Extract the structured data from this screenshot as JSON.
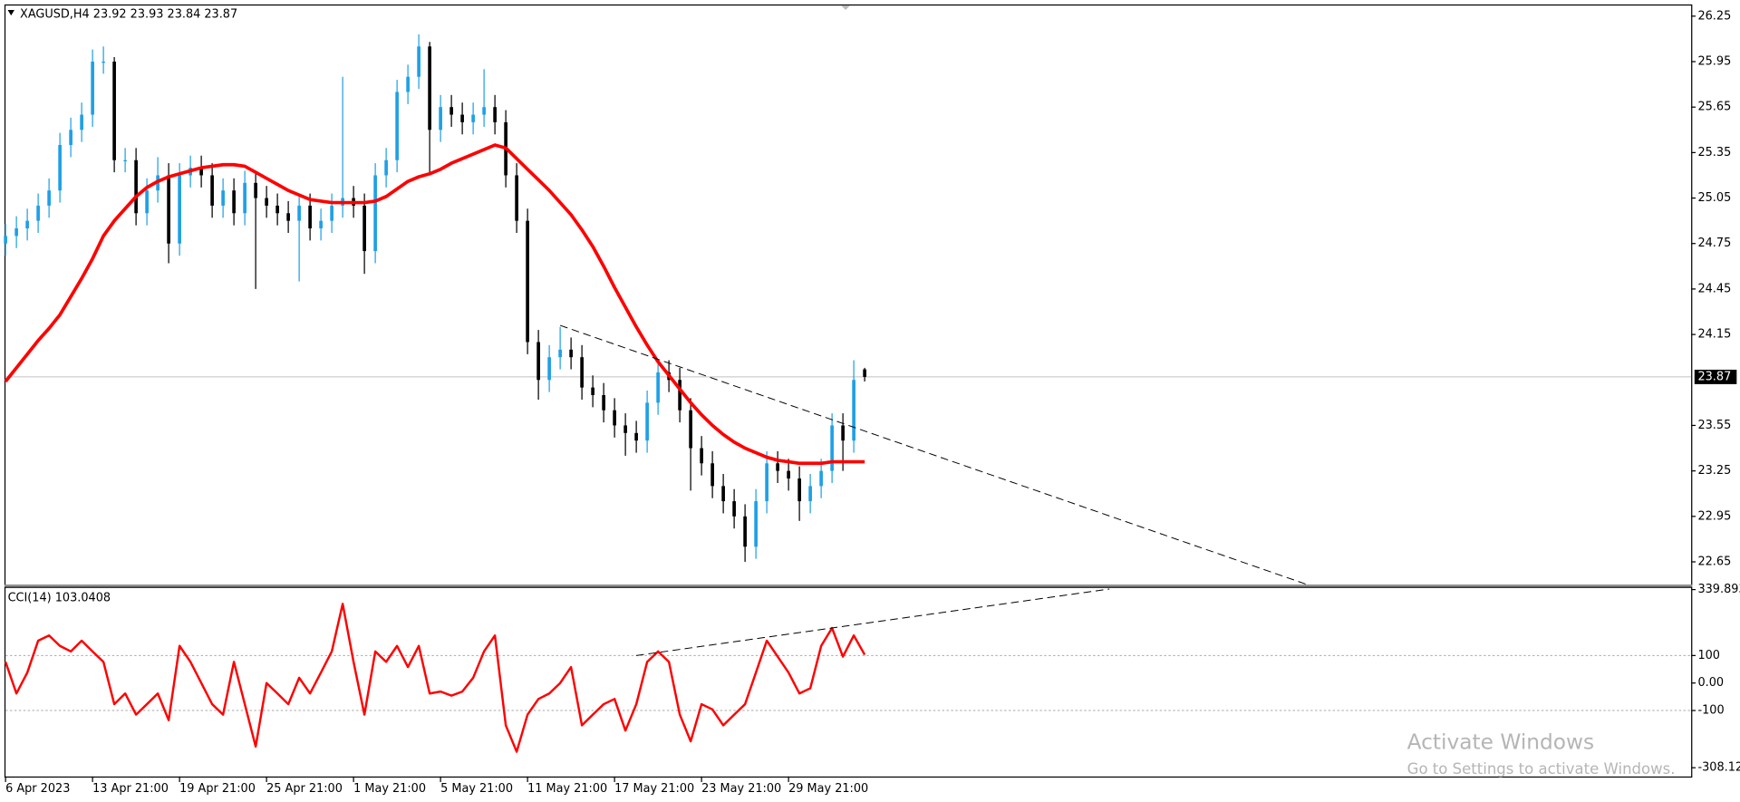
{
  "chart_data": [
    {
      "type": "candlestick",
      "title": "XAGUSD,H4  23.92 23.93 23.84 23.87",
      "up_color": "#1fa0e6",
      "down_color": "#000000",
      "open": [
        24.75,
        24.8,
        24.85,
        24.9,
        25.0,
        25.1,
        25.4,
        25.5,
        25.6,
        25.95,
        25.95,
        25.3,
        25.3,
        24.95,
        25.1,
        25.2,
        24.75,
        25.2,
        25.25,
        25.2,
        25.0,
        25.1,
        24.95,
        25.15,
        25.05,
        25.0,
        24.95,
        24.9,
        25.0,
        24.85,
        24.9,
        25.0,
        25.05,
        25.0,
        24.7,
        25.2,
        25.3,
        25.75,
        25.85,
        26.05,
        25.5,
        25.65,
        25.6,
        25.55,
        25.6,
        25.65,
        25.55,
        25.2,
        24.9,
        24.1,
        23.85,
        24.0,
        24.05,
        24.0,
        23.8,
        23.75,
        23.65,
        23.55,
        23.5,
        23.45,
        23.7,
        23.9,
        23.85,
        23.65,
        23.4,
        23.3,
        23.15,
        23.05,
        22.95,
        22.75,
        23.05,
        23.3,
        23.25,
        23.2,
        23.05,
        23.15,
        23.25,
        23.55,
        23.45,
        23.92
      ],
      "high": [
        24.88,
        24.93,
        24.98,
        25.08,
        25.18,
        25.48,
        25.58,
        25.68,
        26.03,
        26.05,
        25.98,
        25.38,
        25.38,
        25.18,
        25.32,
        25.28,
        25.28,
        25.33,
        25.33,
        25.28,
        25.18,
        25.18,
        25.23,
        25.23,
        25.13,
        25.08,
        25.03,
        25.08,
        25.08,
        24.98,
        25.08,
        25.85,
        25.13,
        25.08,
        25.28,
        25.38,
        25.83,
        25.93,
        26.13,
        26.08,
        25.73,
        25.73,
        25.68,
        25.68,
        25.9,
        25.73,
        25.63,
        25.28,
        24.98,
        24.18,
        24.08,
        24.2,
        24.13,
        24.08,
        23.88,
        23.83,
        23.73,
        23.63,
        23.58,
        23.78,
        23.98,
        23.98,
        23.93,
        23.73,
        23.48,
        23.38,
        23.23,
        23.13,
        23.03,
        23.13,
        23.38,
        23.38,
        23.33,
        23.28,
        23.23,
        23.33,
        23.63,
        23.63,
        23.98,
        23.93
      ],
      "low": [
        24.67,
        24.72,
        24.77,
        24.82,
        24.92,
        25.02,
        25.32,
        25.42,
        25.52,
        25.87,
        25.22,
        25.22,
        24.87,
        24.87,
        25.02,
        24.62,
        24.67,
        25.12,
        25.12,
        24.92,
        24.92,
        24.87,
        24.87,
        24.45,
        24.92,
        24.87,
        24.82,
        24.5,
        24.77,
        24.77,
        24.82,
        24.92,
        24.92,
        24.55,
        24.62,
        25.12,
        25.22,
        25.67,
        25.77,
        25.2,
        25.42,
        25.52,
        25.47,
        25.47,
        25.52,
        25.47,
        25.12,
        24.82,
        24.02,
        23.72,
        23.77,
        23.92,
        23.92,
        23.72,
        23.67,
        23.57,
        23.47,
        23.35,
        23.37,
        23.37,
        23.62,
        23.77,
        23.57,
        23.12,
        23.22,
        23.07,
        22.97,
        22.87,
        22.65,
        22.67,
        22.97,
        23.17,
        23.12,
        22.92,
        22.97,
        23.07,
        23.17,
        23.25,
        23.37,
        23.84
      ],
      "close": [
        24.8,
        24.85,
        24.9,
        25.0,
        25.1,
        25.4,
        25.5,
        25.6,
        25.95,
        25.95,
        25.3,
        25.3,
        24.95,
        25.1,
        25.2,
        24.75,
        25.2,
        25.25,
        25.2,
        25.0,
        25.1,
        24.95,
        25.15,
        25.05,
        25.0,
        24.95,
        24.9,
        25.0,
        24.85,
        24.9,
        25.0,
        25.05,
        25.0,
        24.7,
        25.2,
        25.3,
        25.75,
        25.85,
        26.05,
        25.5,
        25.65,
        25.6,
        25.55,
        25.6,
        25.65,
        25.55,
        25.2,
        24.9,
        24.1,
        23.85,
        24.0,
        24.05,
        24.0,
        23.8,
        23.75,
        23.65,
        23.55,
        23.5,
        23.45,
        23.7,
        23.9,
        23.85,
        23.65,
        23.4,
        23.3,
        23.15,
        23.05,
        22.95,
        22.75,
        23.05,
        23.3,
        23.25,
        23.2,
        23.05,
        23.15,
        23.25,
        23.55,
        23.45,
        23.85,
        23.87
      ],
      "series": [
        {
          "color": "#ff0000",
          "values": [
            23.84,
            23.93,
            24.02,
            24.11,
            24.19,
            24.28,
            24.4,
            24.52,
            24.65,
            24.8,
            24.9,
            24.98,
            25.06,
            25.12,
            25.16,
            25.19,
            25.21,
            25.23,
            25.25,
            25.26,
            25.27,
            25.27,
            25.26,
            25.22,
            25.18,
            25.14,
            25.1,
            25.07,
            25.04,
            25.03,
            25.02,
            25.02,
            25.02,
            25.02,
            25.03,
            25.06,
            25.11,
            25.16,
            25.19,
            25.21,
            25.24,
            25.28,
            25.31,
            25.34,
            25.37,
            25.4,
            25.38,
            25.31,
            25.24,
            25.17,
            25.1,
            25.02,
            24.94,
            24.84,
            24.73,
            24.6,
            24.46,
            24.33,
            24.2,
            24.08,
            23.97,
            23.88,
            23.79,
            23.7,
            23.62,
            23.55,
            23.49,
            23.44,
            23.4,
            23.37,
            23.34,
            23.32,
            23.31,
            23.3,
            23.3,
            23.3,
            23.31,
            23.31,
            23.31,
            23.31
          ]
        }
      ],
      "last_price": 23.87,
      "trendlines": [
        {
          "x": [
            51,
            119.7
          ],
          "y": [
            24.21,
            22.5
          ]
        }
      ],
      "xlim": [
        0,
        155
      ],
      "xticks": [
        {
          "value": 0,
          "label": "6 Apr 2023"
        },
        {
          "value": 8,
          "label": "13 Apr 21:00"
        },
        {
          "value": 16,
          "label": "19 Apr 21:00"
        },
        {
          "value": 24,
          "label": "25 Apr 21:00"
        },
        {
          "value": 32,
          "label": "1 May 21:00"
        },
        {
          "value": 40,
          "label": "5 May 21:00"
        },
        {
          "value": 48,
          "label": "11 May 21:00"
        },
        {
          "value": 56,
          "label": "17 May 21:00"
        },
        {
          "value": 64,
          "label": "23 May 21:00"
        },
        {
          "value": 72,
          "label": "29 May 21:00"
        }
      ],
      "ylim": [
        22.5,
        26.32
      ],
      "yticks": [
        26.25,
        25.95,
        25.65,
        25.35,
        25.05,
        24.75,
        24.45,
        24.15,
        23.55,
        23.25,
        22.95,
        22.65
      ]
    },
    {
      "type": "line",
      "title": "CCI(14) 103.0408",
      "series": [
        {
          "color": "#ff0000",
          "values": [
            77,
            -38,
            38,
            154,
            173,
            135,
            115,
            154,
            115,
            77,
            -77,
            -38,
            -115,
            -77,
            -38,
            -135,
            135,
            77,
            0,
            -77,
            -115,
            77,
            -77,
            -231,
            0,
            -38,
            -77,
            19,
            -38,
            38,
            115,
            288,
            77,
            -115,
            115,
            77,
            135,
            58,
            135,
            -38,
            -31,
            -46,
            -31,
            19,
            115,
            173,
            -154,
            -250,
            -115,
            -58,
            -38,
            0,
            58,
            -154,
            -115,
            -77,
            -58,
            -173,
            -77,
            77,
            115,
            77,
            -115,
            -212,
            -77,
            -96,
            -154,
            -115,
            -77,
            38,
            154,
            96,
            38,
            -38,
            -19,
            135,
            200,
            96,
            173,
            103.0408
          ]
        }
      ],
      "levels": [
        100,
        -100
      ],
      "trendlines": [
        {
          "x": [
            58,
            101.5
          ],
          "y": [
            100,
            342
          ]
        }
      ],
      "ylim": [
        -340,
        350
      ],
      "yticks": [
        339.893,
        100,
        {
          "value": 0,
          "label": "0.00"
        },
        -100,
        -308.127
      ]
    }
  ],
  "watermark": {
    "title": "Activate Windows",
    "subtitle": "Go to Settings to activate Windows."
  }
}
